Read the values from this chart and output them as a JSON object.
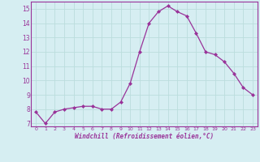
{
  "x": [
    0,
    1,
    2,
    3,
    4,
    5,
    6,
    7,
    8,
    9,
    10,
    11,
    12,
    13,
    14,
    15,
    16,
    17,
    18,
    19,
    20,
    21,
    22,
    23
  ],
  "y": [
    7.8,
    7.0,
    7.8,
    8.0,
    8.1,
    8.2,
    8.2,
    8.0,
    8.0,
    8.5,
    9.8,
    12.0,
    14.0,
    14.8,
    15.2,
    14.8,
    14.5,
    13.3,
    12.0,
    11.8,
    11.3,
    10.5,
    9.5,
    9.0
  ],
  "line_color": "#993399",
  "marker": "D",
  "marker_size": 2,
  "bg_color": "#d6eef2",
  "grid_color": "#bbdddd",
  "xlabel": "Windchill (Refroidissement éolien,°C)",
  "xlabel_color": "#993399",
  "tick_color": "#993399",
  "label_color": "#993399",
  "ylim": [
    6.8,
    15.5
  ],
  "xlim": [
    -0.5,
    23.5
  ],
  "yticks": [
    7,
    8,
    9,
    10,
    11,
    12,
    13,
    14,
    15
  ],
  "xticks": [
    0,
    1,
    2,
    3,
    4,
    5,
    6,
    7,
    8,
    9,
    10,
    11,
    12,
    13,
    14,
    15,
    16,
    17,
    18,
    19,
    20,
    21,
    22,
    23
  ]
}
